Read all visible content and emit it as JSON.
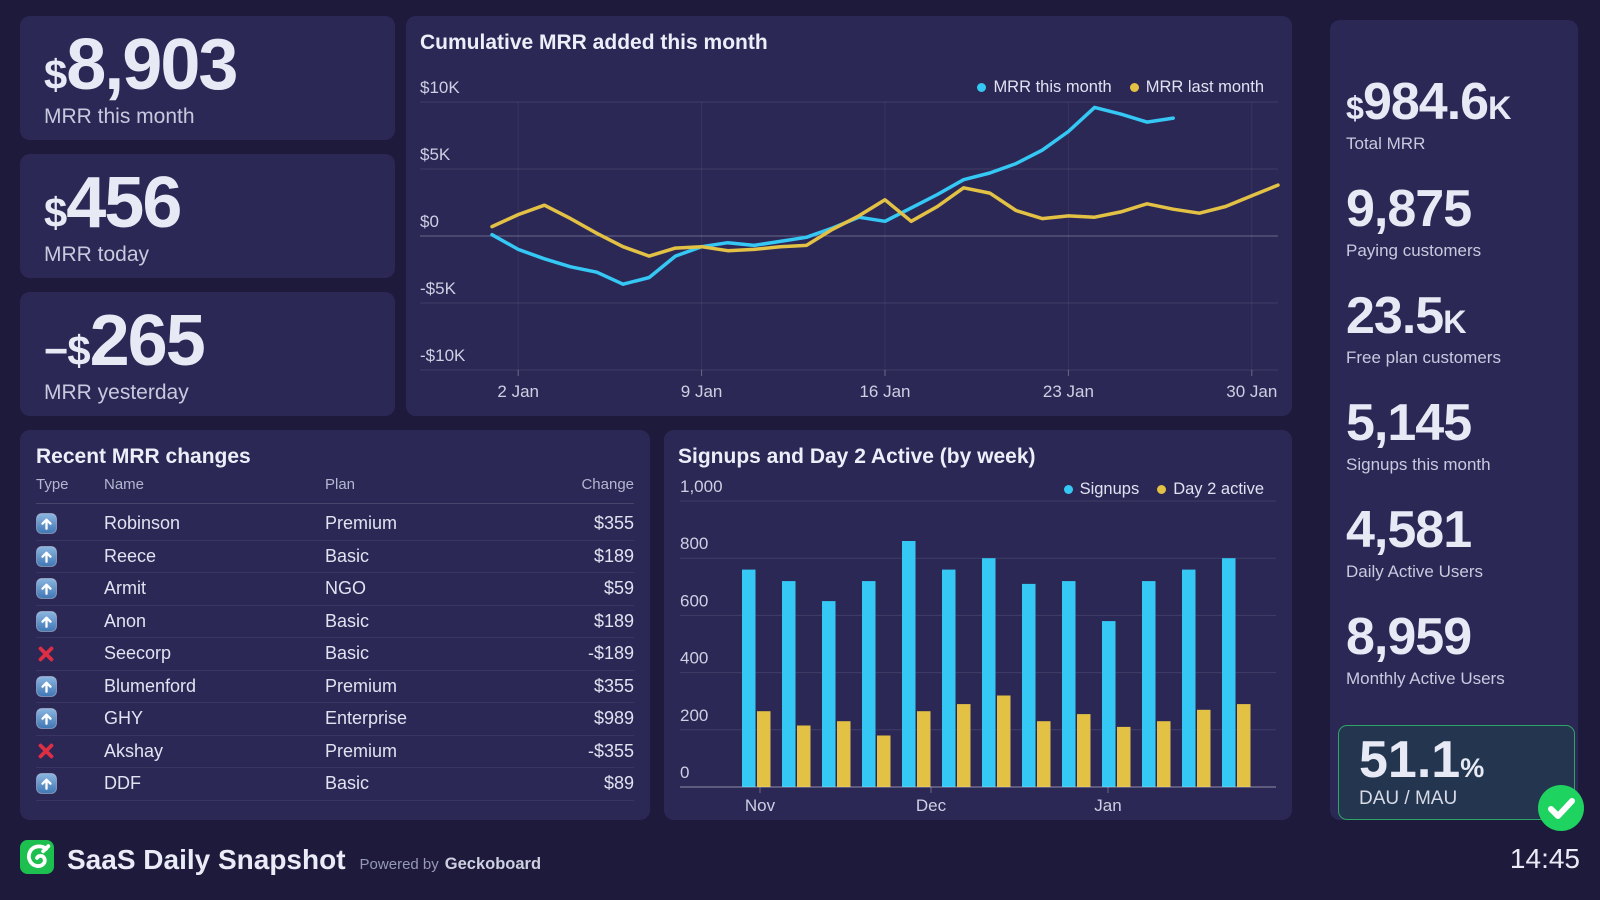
{
  "colors": {
    "page_bg": "#1e1a3c",
    "card_bg": "#2b2856",
    "cyan": "#35c8f5",
    "yellow": "#e2c144",
    "green": "#1ed35f",
    "logo_green": "#1dbf4e",
    "red": "#dd2e44",
    "icon_blue_top": "#8cb6e0",
    "icon_blue_bottom": "#3f76b4",
    "dau_box_bg": "#24364f",
    "dau_box_border": "#2da565"
  },
  "left_stats": [
    {
      "prefix": "$",
      "value": "8,903",
      "label": "MRR this month"
    },
    {
      "prefix": "$",
      "value": "456",
      "label": "MRR today"
    },
    {
      "sign": "−",
      "prefix": "$",
      "value": "265",
      "label": "MRR yesterday"
    }
  ],
  "right_stats": [
    {
      "prefix": "$",
      "value": "984.6",
      "suffix": "K",
      "label": "Total MRR"
    },
    {
      "value": "9,875",
      "label": "Paying customers"
    },
    {
      "value": "23.5",
      "suffix": "K",
      "label": "Free plan customers"
    },
    {
      "value": "5,145",
      "label": "Signups this month"
    },
    {
      "value": "4,581",
      "label": "Daily Active Users"
    },
    {
      "value": "8,959",
      "label": "Monthly Active Users"
    }
  ],
  "dau_mau": {
    "value": "51.1",
    "suffix": "%",
    "label": "DAU / MAU"
  },
  "table": {
    "title": "Recent MRR changes",
    "columns": [
      "Type",
      "Name",
      "Plan",
      "Change"
    ],
    "rows": [
      {
        "type": "upgrade",
        "name": "Robinson",
        "plan": "Premium",
        "change": "$355"
      },
      {
        "type": "upgrade",
        "name": "Reece",
        "plan": "Basic",
        "change": "$189"
      },
      {
        "type": "upgrade",
        "name": "Armit",
        "plan": "NGO",
        "change": "$59"
      },
      {
        "type": "upgrade",
        "name": "Anon",
        "plan": "Basic",
        "change": "$189"
      },
      {
        "type": "churn",
        "name": "Seecorp",
        "plan": "Basic",
        "change": "-$189"
      },
      {
        "type": "upgrade",
        "name": "Blumenford",
        "plan": "Premium",
        "change": "$355"
      },
      {
        "type": "upgrade",
        "name": "GHY",
        "plan": "Enterprise",
        "change": "$989"
      },
      {
        "type": "churn",
        "name": "Akshay",
        "plan": "Premium",
        "change": "-$355"
      },
      {
        "type": "upgrade",
        "name": "DDF",
        "plan": "Basic",
        "change": "$89"
      }
    ]
  },
  "chart_data": [
    {
      "type": "line",
      "title": "Cumulative MRR added this month",
      "legend_position": "top-right",
      "grid": true,
      "x_unit": "day of January",
      "ylim": [
        -10000,
        10000
      ],
      "y_ticks": [
        {
          "label": "$10K",
          "value": 10000
        },
        {
          "label": "$5K",
          "value": 5000
        },
        {
          "label": "$0",
          "value": 0
        },
        {
          "label": "-$5K",
          "value": -5000
        },
        {
          "label": "-$10K",
          "value": -10000
        }
      ],
      "x_ticks": [
        {
          "label": "2 Jan",
          "day": 2
        },
        {
          "label": "9 Jan",
          "day": 9
        },
        {
          "label": "16 Jan",
          "day": 16
        },
        {
          "label": "23 Jan",
          "day": 23
        },
        {
          "label": "30 Jan",
          "day": 30
        }
      ],
      "series": [
        {
          "name": "MRR this month",
          "color": "#35c8f5",
          "x": [
            1,
            2,
            3,
            4,
            5,
            6,
            7,
            8,
            9,
            10,
            11,
            12,
            13,
            14,
            15,
            16,
            17,
            18,
            19,
            20,
            21,
            22,
            23,
            24,
            25,
            26,
            27
          ],
          "values": [
            100,
            -1000,
            -1700,
            -2300,
            -2700,
            -3600,
            -3100,
            -1500,
            -800,
            -500,
            -700,
            -400,
            -100,
            600,
            1400,
            1100,
            2100,
            3100,
            4200,
            4700,
            5400,
            6400,
            7800,
            9600,
            9100,
            8500,
            8800
          ]
        },
        {
          "name": "MRR last month",
          "color": "#e2c144",
          "x": [
            1,
            2,
            3,
            4,
            5,
            6,
            7,
            8,
            9,
            10,
            11,
            12,
            13,
            14,
            15,
            16,
            17,
            18,
            19,
            20,
            21,
            22,
            23,
            24,
            25,
            26,
            27,
            28,
            29,
            30,
            31
          ],
          "values": [
            700,
            1600,
            2300,
            1300,
            200,
            -800,
            -1500,
            -900,
            -800,
            -1100,
            -1000,
            -800,
            -700,
            500,
            1500,
            2700,
            1100,
            2200,
            3600,
            3200,
            1900,
            1300,
            1500,
            1400,
            1800,
            2400,
            2000,
            1700,
            2200,
            3000,
            3800
          ]
        }
      ]
    },
    {
      "type": "bar",
      "title": "Signups and Day 2 Active (by week)",
      "legend_position": "top-right",
      "grid": true,
      "categories_note": "13 weekly buckets from Nov to Jan",
      "ylim": [
        0,
        1000
      ],
      "y_ticks": [
        {
          "label": "1,000",
          "value": 1000
        },
        {
          "label": "800",
          "value": 800
        },
        {
          "label": "600",
          "value": 600
        },
        {
          "label": "400",
          "value": 400
        },
        {
          "label": "200",
          "value": 200
        },
        {
          "label": "0",
          "value": 0
        }
      ],
      "x_ticks": [
        "Nov",
        "Dec",
        "Jan"
      ],
      "series": [
        {
          "name": "Signups",
          "color": "#35c8f5",
          "values": [
            760,
            720,
            650,
            720,
            860,
            760,
            800,
            710,
            720,
            580,
            720,
            760,
            800
          ]
        },
        {
          "name": "Day 2 active",
          "color": "#e2c144",
          "values": [
            265,
            215,
            230,
            180,
            265,
            290,
            320,
            230,
            255,
            210,
            230,
            270,
            290
          ]
        }
      ]
    }
  ],
  "footer": {
    "title": "SaaS Daily Snapshot",
    "powered_by": "Powered by",
    "brand": "Geckoboard",
    "time": "14:45"
  }
}
